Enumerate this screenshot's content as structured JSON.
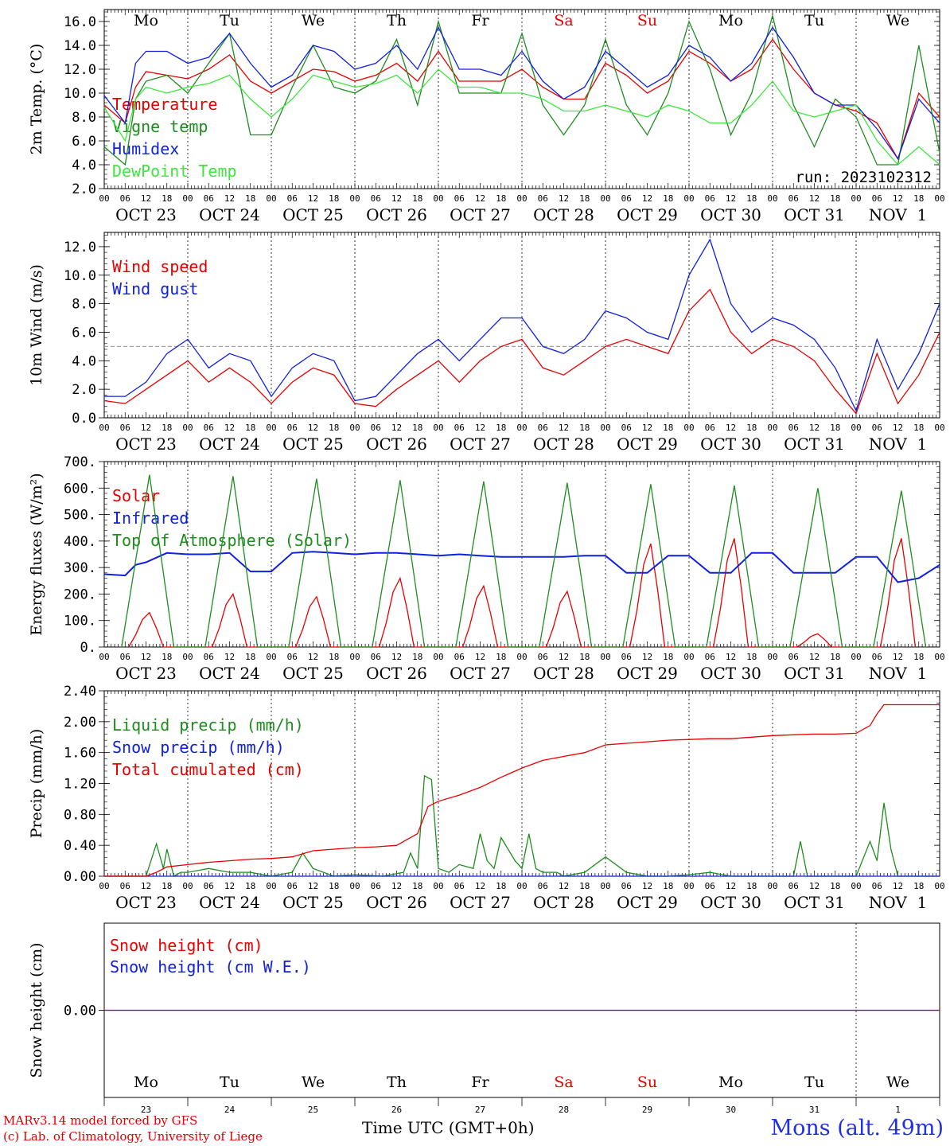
{
  "colors": {
    "red": "#e60000",
    "dark_green": "#1e8c1e",
    "blue": "#1020e0",
    "light_green": "#3ee63e",
    "purple": "#8020a0",
    "weekend": "#e60000",
    "weekday": "#000000",
    "ref_line": "#a0a0a0"
  },
  "time_axis": {
    "hours_total": 240,
    "tick_labels": [
      "00",
      "06",
      "12",
      "18"
    ],
    "date_labels": [
      "OCT 23",
      "OCT 24",
      "OCT 25",
      "OCT 26",
      "OCT 27",
      "OCT 28",
      "OCT 29",
      "OCT 30",
      "OCT 31",
      "NOV  1"
    ],
    "day_names": [
      "Mo",
      "Tu",
      "We",
      "Th",
      "Fr",
      "Sa",
      "Su",
      "Mo",
      "Tu",
      "We"
    ],
    "weekend_days": [
      5,
      6
    ],
    "bottom_day_numbers": [
      "23",
      "24",
      "25",
      "26",
      "27",
      "28",
      "29",
      "30",
      "31",
      "1"
    ]
  },
  "footer": {
    "credit_line1": "MARv3.14 model forced by GFS",
    "credit_line2": "(c) Lab. of Climatology, University of Liege",
    "x_label": "Time UTC (GMT+0h)",
    "station": "Mons (alt. 49m)"
  },
  "chart_data": [
    {
      "type": "line",
      "ylabel": "2m Temp. (°C)",
      "ylim": [
        2,
        17
      ],
      "yticks": [
        "2.0",
        "4.0",
        "6.0",
        "8.0",
        "10.0",
        "12.0",
        "14.0",
        "16.0"
      ],
      "ytick_values": [
        2,
        4,
        6,
        8,
        10,
        12,
        14,
        16
      ],
      "annotation": "run: 2023102312",
      "series": [
        {
          "name": "Temperature",
          "color_key": "red",
          "x": [
            0,
            6,
            9,
            12,
            18,
            24,
            30,
            36,
            42,
            48,
            54,
            60,
            66,
            72,
            78,
            84,
            90,
            96,
            102,
            108,
            114,
            120,
            126,
            132,
            138,
            144,
            150,
            156,
            162,
            168,
            174,
            180,
            186,
            192,
            198,
            204,
            210,
            216,
            222,
            228,
            234,
            240
          ],
          "y": [
            9.0,
            7.5,
            10.5,
            11.8,
            11.5,
            11.2,
            12.0,
            13.2,
            11.0,
            10.0,
            11.0,
            12.0,
            11.8,
            11.0,
            11.5,
            12.5,
            11.0,
            13.5,
            11.0,
            11.0,
            11.0,
            12.0,
            10.5,
            9.5,
            9.5,
            12.5,
            11.5,
            10.0,
            11.0,
            13.5,
            12.5,
            11.0,
            12.0,
            14.5,
            12.0,
            10.0,
            9.0,
            8.5,
            7.5,
            4.5,
            10.0,
            8.0
          ]
        },
        {
          "name": "Vigne temp",
          "color_key": "dark_green",
          "x": [
            0,
            6,
            9,
            12,
            18,
            24,
            30,
            36,
            42,
            48,
            54,
            60,
            66,
            72,
            78,
            84,
            90,
            96,
            102,
            108,
            114,
            120,
            126,
            132,
            138,
            144,
            150,
            156,
            162,
            168,
            174,
            180,
            186,
            192,
            198,
            204,
            210,
            216,
            222,
            228,
            234,
            240
          ],
          "y": [
            5.5,
            4.0,
            9.5,
            11.0,
            11.5,
            10.0,
            12.5,
            15.0,
            6.5,
            6.5,
            10.5,
            14.0,
            10.5,
            10.0,
            11.0,
            14.5,
            9.0,
            16.0,
            10.0,
            10.0,
            10.0,
            15.0,
            9.0,
            6.5,
            9.0,
            14.5,
            9.0,
            6.5,
            10.0,
            16.0,
            12.0,
            6.5,
            10.0,
            16.5,
            9.0,
            5.5,
            9.5,
            8.0,
            4.0,
            4.0,
            14.0,
            5.0
          ]
        },
        {
          "name": "Humidex",
          "color_key": "blue",
          "x": [
            0,
            6,
            9,
            12,
            18,
            24,
            30,
            36,
            42,
            48,
            54,
            60,
            66,
            72,
            78,
            84,
            90,
            96,
            102,
            108,
            114,
            120,
            126,
            132,
            138,
            144,
            150,
            156,
            162,
            168,
            174,
            180,
            186,
            192,
            198,
            204,
            210,
            216,
            222,
            228,
            234,
            240
          ],
          "y": [
            9.8,
            7.5,
            12.5,
            13.5,
            13.5,
            12.5,
            13.0,
            15.0,
            12.5,
            10.5,
            11.5,
            14.0,
            13.5,
            12.0,
            12.5,
            14.0,
            12.0,
            15.5,
            12.0,
            12.0,
            11.5,
            13.5,
            11.0,
            9.5,
            10.5,
            13.5,
            12.0,
            10.5,
            11.5,
            14.0,
            13.0,
            11.0,
            12.5,
            15.5,
            13.0,
            10.0,
            9.0,
            9.0,
            7.0,
            4.5,
            9.5,
            7.5
          ]
        },
        {
          "name": "DewPoint Temp",
          "color_key": "light_green",
          "x": [
            0,
            6,
            9,
            12,
            18,
            24,
            30,
            36,
            42,
            48,
            54,
            60,
            66,
            72,
            78,
            84,
            90,
            96,
            102,
            108,
            114,
            120,
            126,
            132,
            138,
            144,
            150,
            156,
            162,
            168,
            174,
            180,
            186,
            192,
            198,
            204,
            210,
            216,
            222,
            228,
            234,
            240
          ],
          "y": [
            8.8,
            6.0,
            9.5,
            10.5,
            10.0,
            10.5,
            10.8,
            11.5,
            9.5,
            8.0,
            9.5,
            11.5,
            11.0,
            10.5,
            10.8,
            11.5,
            10.0,
            12.0,
            10.5,
            10.5,
            10.0,
            10.0,
            9.5,
            8.5,
            8.5,
            9.0,
            8.5,
            8.0,
            9.0,
            8.5,
            7.5,
            7.5,
            9.0,
            11.0,
            8.5,
            8.0,
            8.5,
            9.0,
            6.0,
            4.0,
            5.5,
            4.0
          ]
        }
      ]
    },
    {
      "type": "line",
      "ylabel": "10m Wind (m/s)",
      "ylim": [
        0,
        13
      ],
      "yticks": [
        "0.0",
        "2.0",
        "4.0",
        "6.0",
        "8.0",
        "10.0",
        "12.0"
      ],
      "ytick_values": [
        0,
        2,
        4,
        6,
        8,
        10,
        12
      ],
      "reference_line": 5,
      "series": [
        {
          "name": "Wind speed",
          "color_key": "red",
          "x": [
            0,
            6,
            12,
            18,
            24,
            30,
            36,
            42,
            48,
            54,
            60,
            66,
            72,
            78,
            84,
            90,
            96,
            102,
            108,
            114,
            120,
            126,
            132,
            138,
            144,
            150,
            156,
            162,
            168,
            174,
            180,
            186,
            192,
            198,
            204,
            210,
            216,
            222,
            228,
            234,
            240
          ],
          "y": [
            1.2,
            1.0,
            2.0,
            3.0,
            4.0,
            2.5,
            3.5,
            2.5,
            1.0,
            2.5,
            3.5,
            3.0,
            1.0,
            0.8,
            2.0,
            3.0,
            4.0,
            2.5,
            4.0,
            5.0,
            5.5,
            3.5,
            3.0,
            4.0,
            5.0,
            5.5,
            5.0,
            4.5,
            7.5,
            9.0,
            6.0,
            4.5,
            5.5,
            5.0,
            4.0,
            2.0,
            0.3,
            4.5,
            1.0,
            3.0,
            6.0
          ]
        },
        {
          "name": "Wind gust",
          "color_key": "blue",
          "x": [
            0,
            6,
            12,
            18,
            24,
            30,
            36,
            42,
            48,
            54,
            60,
            66,
            72,
            78,
            84,
            90,
            96,
            102,
            108,
            114,
            120,
            126,
            132,
            138,
            144,
            150,
            156,
            162,
            168,
            174,
            180,
            186,
            192,
            198,
            204,
            210,
            216,
            222,
            228,
            234,
            240
          ],
          "y": [
            1.5,
            1.5,
            2.5,
            4.5,
            5.5,
            3.5,
            4.5,
            4.0,
            1.5,
            3.5,
            4.5,
            4.0,
            1.2,
            1.5,
            3.0,
            4.5,
            5.5,
            4.0,
            5.5,
            7.0,
            7.0,
            5.0,
            4.5,
            5.5,
            7.5,
            7.0,
            6.0,
            5.5,
            10.0,
            12.5,
            8.0,
            6.0,
            7.0,
            6.5,
            5.5,
            3.5,
            0.5,
            5.5,
            2.0,
            4.5,
            8.0
          ]
        }
      ]
    },
    {
      "type": "line",
      "ylabel": "Energy fluxes (W/m²)",
      "ylim": [
        0,
        700
      ],
      "yticks": [
        "0.",
        "100.",
        "200.",
        "300.",
        "400.",
        "500.",
        "600.",
        "700."
      ],
      "ytick_values": [
        0,
        100,
        200,
        300,
        400,
        500,
        600,
        700
      ],
      "daily": {
        "toa_peak": [
          650,
          645,
          635,
          630,
          625,
          620,
          615,
          610,
          600,
          590
        ],
        "solar_peak": [
          130,
          200,
          190,
          260,
          230,
          210,
          390,
          410,
          50,
          410
        ]
      },
      "series": [
        {
          "name": "Solar",
          "color_key": "red",
          "generated_from": "daily.solar_peak"
        },
        {
          "name": "Infrared",
          "color_key": "blue",
          "x": [
            0,
            6,
            9,
            12,
            18,
            24,
            30,
            36,
            42,
            48,
            54,
            60,
            66,
            72,
            78,
            84,
            90,
            96,
            102,
            108,
            114,
            120,
            126,
            132,
            138,
            144,
            150,
            156,
            162,
            168,
            174,
            180,
            186,
            192,
            198,
            204,
            210,
            216,
            222,
            228,
            234,
            240
          ],
          "y": [
            275,
            270,
            310,
            320,
            355,
            350,
            350,
            355,
            285,
            285,
            355,
            360,
            355,
            350,
            355,
            355,
            350,
            345,
            350,
            345,
            340,
            340,
            340,
            340,
            345,
            345,
            280,
            280,
            345,
            345,
            280,
            280,
            355,
            355,
            280,
            280,
            280,
            340,
            340,
            245,
            260,
            310
          ]
        },
        {
          "name": "Top of Atmosphere (Solar)",
          "color_key": "dark_green",
          "generated_from": "daily.toa_peak"
        }
      ]
    },
    {
      "type": "line",
      "ylabel": "Precip (mm/h)",
      "ylim": [
        0,
        2.4
      ],
      "yticks": [
        "0.00",
        "0.40",
        "0.80",
        "1.20",
        "1.60",
        "2.00",
        "2.40"
      ],
      "ytick_values": [
        0,
        0.4,
        0.8,
        1.2,
        1.6,
        2.0,
        2.4
      ],
      "series": [
        {
          "name": "Liquid precip (mm/h)",
          "color_key": "dark_green",
          "x": [
            0,
            12,
            15,
            17,
            18,
            20,
            22,
            24,
            30,
            36,
            42,
            48,
            54,
            57,
            60,
            66,
            72,
            80,
            86,
            88,
            90,
            92,
            94,
            96,
            99,
            102,
            106,
            108,
            110,
            112,
            114,
            118,
            120,
            122,
            124,
            126,
            130,
            132,
            138,
            144,
            150,
            156,
            162,
            168,
            174,
            180,
            186,
            198,
            200,
            202,
            204,
            210,
            216,
            220,
            222,
            224,
            226,
            228,
            240
          ],
          "y": [
            0,
            0,
            0.42,
            0.1,
            0.35,
            0,
            0.05,
            0.05,
            0.1,
            0.05,
            0.05,
            0,
            0.05,
            0.3,
            0.1,
            0,
            0.02,
            0,
            0.05,
            0.3,
            0.1,
            1.3,
            1.25,
            0.1,
            0.05,
            0.15,
            0.1,
            0.55,
            0.2,
            0.1,
            0.5,
            0.2,
            0.1,
            0.55,
            0.1,
            0.05,
            0.05,
            0,
            0.05,
            0.25,
            0.05,
            0,
            0,
            0.02,
            0.05,
            0,
            0,
            0,
            0.45,
            0,
            0,
            0,
            0,
            0.45,
            0.2,
            0.95,
            0.35,
            0,
            0
          ]
        },
        {
          "name": "Snow precip (mm/h)",
          "color_key": "blue",
          "x": [
            0,
            240
          ],
          "y": [
            0,
            0
          ]
        },
        {
          "name": "Total cumulated (cm)",
          "color_key": "red",
          "x": [
            0,
            12,
            15,
            18,
            24,
            30,
            36,
            42,
            48,
            54,
            60,
            66,
            72,
            78,
            84,
            90,
            93,
            96,
            102,
            108,
            114,
            120,
            126,
            132,
            138,
            144,
            150,
            156,
            162,
            168,
            174,
            180,
            186,
            192,
            198,
            204,
            210,
            216,
            220,
            222,
            224,
            240
          ],
          "y": [
            0,
            0,
            0.05,
            0.12,
            0.15,
            0.18,
            0.2,
            0.22,
            0.23,
            0.25,
            0.33,
            0.35,
            0.37,
            0.38,
            0.4,
            0.55,
            0.9,
            0.97,
            1.05,
            1.15,
            1.28,
            1.4,
            1.5,
            1.55,
            1.6,
            1.7,
            1.72,
            1.74,
            1.76,
            1.77,
            1.78,
            1.78,
            1.8,
            1.82,
            1.83,
            1.84,
            1.84,
            1.85,
            1.95,
            2.1,
            2.22,
            2.22
          ]
        }
      ]
    },
    {
      "type": "line",
      "ylabel": "Snow height (cm)",
      "ylim": [
        -1,
        1
      ],
      "yticks": [
        "0.00"
      ],
      "ytick_values": [
        0
      ],
      "series": [
        {
          "name": "Snow height (cm)",
          "color_key": "red",
          "x": [
            0,
            240
          ],
          "y": [
            0,
            0
          ]
        },
        {
          "name": "Snow height (cm W.E.)",
          "color_key": "blue",
          "x": [
            0,
            240
          ],
          "y": [
            0,
            0
          ]
        }
      ]
    }
  ]
}
